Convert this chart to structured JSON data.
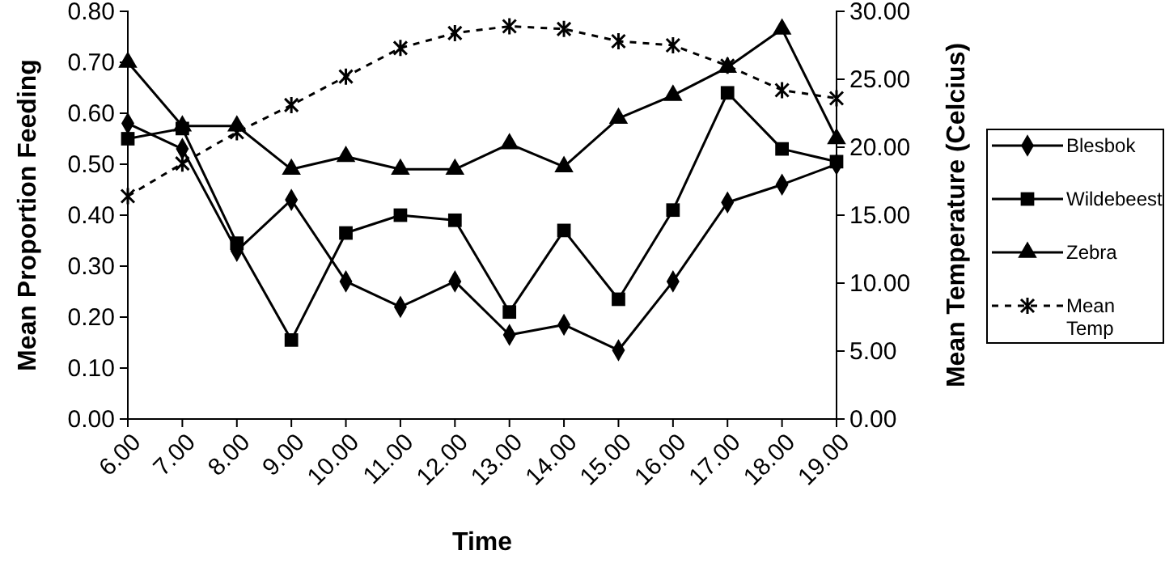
{
  "chart_data": {
    "type": "line",
    "xlabel": "Time",
    "ylabel": "Mean Proportion Feeding",
    "y2label": "Mean Temperature (Celcius)",
    "categories": [
      "6.00",
      "7.00",
      "8.00",
      "9.00",
      "10.00",
      "11.00",
      "12.00",
      "13.00",
      "14.00",
      "15.00",
      "16.00",
      "17.00",
      "18.00",
      "19.00"
    ],
    "series": [
      {
        "name": "Blesbok",
        "color": "#000000",
        "marker": "diamond",
        "line_style": "solid",
        "values": [
          0.58,
          0.53,
          0.33,
          0.43,
          0.27,
          0.22,
          0.27,
          0.165,
          0.185,
          0.135,
          0.27,
          0.425,
          0.46,
          0.5
        ]
      },
      {
        "name": "Wildebeest",
        "color": "#000000",
        "marker": "square",
        "line_style": "solid",
        "values": [
          0.55,
          0.57,
          0.345,
          0.155,
          0.365,
          0.4,
          0.39,
          0.21,
          0.37,
          0.235,
          0.41,
          0.64,
          0.53,
          0.505
        ]
      },
      {
        "name": "Zebra",
        "color": "#000000",
        "marker": "triangle",
        "line_style": "solid",
        "values": [
          0.7,
          0.575,
          0.575,
          0.49,
          0.515,
          0.49,
          0.49,
          0.54,
          0.495,
          0.59,
          0.635,
          0.69,
          0.765,
          0.55
        ]
      },
      {
        "name": "Mean Temp",
        "color": "#000000",
        "marker": "cross",
        "line_style": "dashed",
        "axis": "y2",
        "values": [
          16.4,
          18.8,
          21.1,
          23.1,
          25.2,
          27.3,
          28.4,
          28.9,
          28.7,
          27.8,
          27.5,
          26.0,
          24.2,
          23.6
        ]
      }
    ],
    "ylim": [
      0,
      0.8
    ],
    "yticks": [
      {
        "value": 0,
        "label": "0.00"
      },
      {
        "value": 0.1,
        "label": "0.10"
      },
      {
        "value": 0.2,
        "label": "0.20"
      },
      {
        "value": 0.3,
        "label": "0.30"
      },
      {
        "value": 0.4,
        "label": "0.40"
      },
      {
        "value": 0.5,
        "label": "0.50"
      },
      {
        "value": 0.6,
        "label": "0.60"
      },
      {
        "value": 0.7,
        "label": "0.70"
      },
      {
        "value": 0.8,
        "label": "0.80"
      }
    ],
    "y2lim": [
      0,
      30
    ],
    "y2ticks": [
      {
        "value": 0,
        "label": "0.00"
      },
      {
        "value": 5,
        "label": "5.00"
      },
      {
        "value": 10,
        "label": "10.00"
      },
      {
        "value": 15,
        "label": "15.00"
      },
      {
        "value": 20,
        "label": "20.00"
      },
      {
        "value": 25,
        "label": "25.00"
      },
      {
        "value": 30,
        "label": "30.00"
      }
    ],
    "grid": false,
    "legend": "right"
  }
}
